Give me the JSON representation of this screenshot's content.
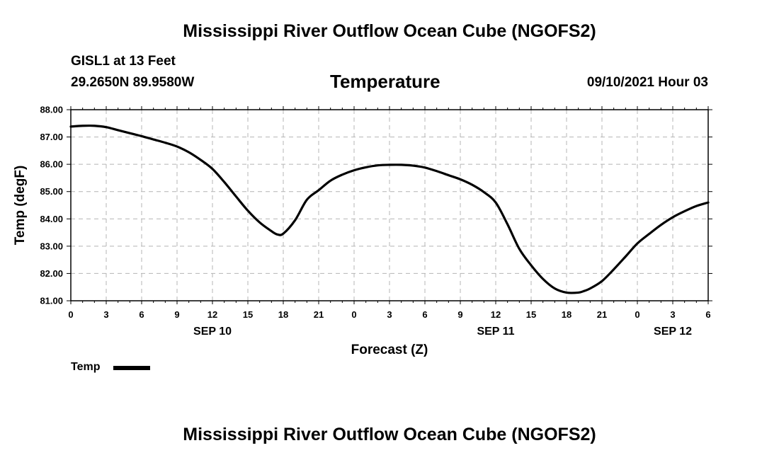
{
  "header": {
    "title": "Mississippi River Outflow Ocean Cube (NGOFS2)",
    "station": "GISL1 at 13 Feet",
    "coordinates": "29.2650N  89.9580W",
    "datetime": "09/10/2021 Hour 03"
  },
  "footer": {
    "title": "Mississippi River Outflow Ocean Cube (NGOFS2)"
  },
  "legend": {
    "label": "Temp",
    "color": "#000000"
  },
  "chart_data": {
    "type": "line",
    "title": "Temperature",
    "xlabel": "Forecast (Z)",
    "ylabel": "Temp (degF)",
    "xlim": [
      0,
      54
    ],
    "ylim": [
      81.0,
      88.0
    ],
    "grid": true,
    "y_ticks": [
      "81.00",
      "82.00",
      "83.00",
      "84.00",
      "85.00",
      "86.00",
      "87.00",
      "88.00"
    ],
    "x_ticks": [
      "0",
      "3",
      "6",
      "9",
      "12",
      "15",
      "18",
      "21",
      "0",
      "3",
      "6",
      "9",
      "12",
      "15",
      "18",
      "21",
      "0",
      "3",
      "6"
    ],
    "date_labels": [
      {
        "label": "SEP 10",
        "hour": 12
      },
      {
        "label": "SEP 11",
        "hour": 36
      },
      {
        "label": "SEP 12",
        "hour": 51
      }
    ],
    "series": [
      {
        "name": "Temp",
        "color": "#000000",
        "x": [
          0,
          1,
          2,
          3,
          4,
          5,
          6,
          7,
          8,
          9,
          10,
          11,
          12,
          13,
          14,
          15,
          16,
          17,
          17.5,
          18,
          19,
          20,
          21,
          22,
          23,
          24,
          25,
          26,
          27,
          28,
          29,
          30,
          31,
          32,
          33,
          34,
          35,
          36,
          37,
          38,
          39,
          40,
          41,
          42,
          43,
          43.5,
          44,
          45,
          46,
          47,
          48,
          49,
          50,
          51,
          52,
          53,
          54
        ],
        "values": [
          87.38,
          87.41,
          87.41,
          87.36,
          87.25,
          87.14,
          87.03,
          86.91,
          86.79,
          86.65,
          86.44,
          86.16,
          85.83,
          85.35,
          84.82,
          84.3,
          83.87,
          83.55,
          83.43,
          83.46,
          83.95,
          84.7,
          85.05,
          85.4,
          85.62,
          85.78,
          85.89,
          85.96,
          85.98,
          85.98,
          85.95,
          85.88,
          85.75,
          85.6,
          85.45,
          85.25,
          84.98,
          84.6,
          83.8,
          82.9,
          82.3,
          81.8,
          81.45,
          81.3,
          81.3,
          81.36,
          81.45,
          81.72,
          82.15,
          82.62,
          83.1,
          83.45,
          83.78,
          84.06,
          84.28,
          84.47,
          84.6
        ]
      }
    ]
  }
}
